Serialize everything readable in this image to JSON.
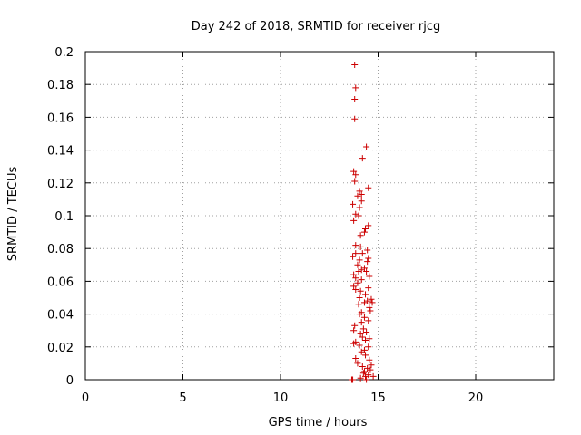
{
  "chart_data": {
    "type": "scatter",
    "title": "Day 242 of 2018, SRMTID for receiver rjcg",
    "xlabel": "GPS time / hours",
    "ylabel": "SRMTID / TECUs",
    "xlim": [
      0,
      24
    ],
    "ylim": [
      0,
      0.2
    ],
    "xticks": [
      0,
      5,
      10,
      15,
      20
    ],
    "yticks": [
      0,
      0.02,
      0.04,
      0.06,
      0.08,
      0.1,
      0.12,
      0.14,
      0.16,
      0.18,
      0.2
    ],
    "xtick_labels": [
      "0",
      "5",
      "10",
      "15",
      "20"
    ],
    "ytick_labels": [
      "0",
      "0.02",
      "0.04",
      "0.06",
      "0.08",
      "0.1",
      "0.12",
      "0.14",
      "0.16",
      "0.18",
      "0.2"
    ],
    "grid": true,
    "marker": "+",
    "color": "#cc0000",
    "series": [
      {
        "points": [
          [
            13.8,
            0.192
          ],
          [
            13.85,
            0.178
          ],
          [
            13.8,
            0.171
          ],
          [
            13.8,
            0.159
          ],
          [
            14.4,
            0.142
          ],
          [
            14.2,
            0.135
          ],
          [
            13.75,
            0.127
          ],
          [
            13.85,
            0.125
          ],
          [
            13.8,
            0.121
          ],
          [
            14.5,
            0.117
          ],
          [
            14.05,
            0.115
          ],
          [
            14.15,
            0.113
          ],
          [
            13.95,
            0.112
          ],
          [
            14.15,
            0.109
          ],
          [
            13.7,
            0.107
          ],
          [
            14.05,
            0.105
          ],
          [
            13.85,
            0.101
          ],
          [
            14.0,
            0.1
          ],
          [
            13.75,
            0.097
          ],
          [
            14.5,
            0.094
          ],
          [
            14.35,
            0.092
          ],
          [
            14.3,
            0.09
          ],
          [
            14.1,
            0.088
          ],
          [
            13.85,
            0.082
          ],
          [
            14.1,
            0.081
          ],
          [
            14.45,
            0.079
          ],
          [
            13.85,
            0.077
          ],
          [
            14.2,
            0.077
          ],
          [
            13.7,
            0.075
          ],
          [
            14.5,
            0.074
          ],
          [
            14.05,
            0.073
          ],
          [
            14.45,
            0.072
          ],
          [
            13.95,
            0.07
          ],
          [
            14.3,
            0.068
          ],
          [
            14.15,
            0.067
          ],
          [
            14.4,
            0.066
          ],
          [
            14.0,
            0.066
          ],
          [
            13.75,
            0.064
          ],
          [
            14.55,
            0.063
          ],
          [
            13.85,
            0.062
          ],
          [
            14.15,
            0.061
          ],
          [
            13.95,
            0.059
          ],
          [
            13.75,
            0.057
          ],
          [
            14.5,
            0.056
          ],
          [
            13.85,
            0.055
          ],
          [
            14.1,
            0.054
          ],
          [
            14.35,
            0.052
          ],
          [
            14.05,
            0.05
          ],
          [
            14.65,
            0.049
          ],
          [
            14.45,
            0.048
          ],
          [
            14.7,
            0.047
          ],
          [
            14.3,
            0.047
          ],
          [
            14.0,
            0.046
          ],
          [
            14.55,
            0.044
          ],
          [
            14.6,
            0.042
          ],
          [
            14.15,
            0.041
          ],
          [
            14.05,
            0.04
          ],
          [
            14.3,
            0.038
          ],
          [
            14.5,
            0.036
          ],
          [
            14.15,
            0.035
          ],
          [
            13.8,
            0.033
          ],
          [
            14.25,
            0.031
          ],
          [
            13.75,
            0.03
          ],
          [
            14.4,
            0.029
          ],
          [
            14.1,
            0.028
          ],
          [
            14.2,
            0.026
          ],
          [
            14.55,
            0.025
          ],
          [
            14.35,
            0.024
          ],
          [
            13.85,
            0.023
          ],
          [
            13.75,
            0.022
          ],
          [
            14.05,
            0.021
          ],
          [
            14.5,
            0.02
          ],
          [
            14.3,
            0.018
          ],
          [
            14.15,
            0.017
          ],
          [
            14.35,
            0.015
          ],
          [
            13.85,
            0.013
          ],
          [
            14.55,
            0.012
          ],
          [
            13.95,
            0.01
          ],
          [
            14.65,
            0.009
          ],
          [
            14.2,
            0.008
          ],
          [
            14.45,
            0.007
          ],
          [
            14.6,
            0.006
          ],
          [
            14.3,
            0.005
          ],
          [
            14.25,
            0.004
          ],
          [
            14.5,
            0.003
          ],
          [
            14.35,
            0.002
          ],
          [
            14.75,
            0.002
          ],
          [
            14.1,
            0.001
          ],
          [
            13.65,
            0.0
          ],
          [
            13.7,
            0.0
          ],
          [
            14.4,
            0.0
          ]
        ]
      }
    ]
  }
}
